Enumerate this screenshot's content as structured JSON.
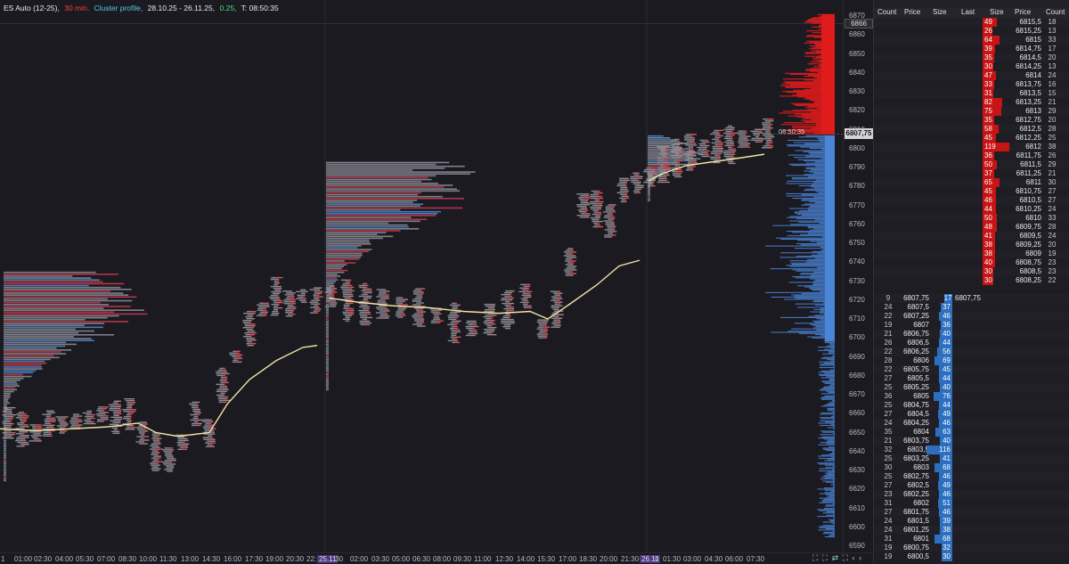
{
  "header": {
    "instrument": "ES Auto (12-25),",
    "timeframe": "30 min,",
    "chart_type": "Cluster profile,",
    "range": "28.10.25 - 26.11.25,",
    "tick": "0.25,",
    "timer": "T: 08:50:35"
  },
  "colors": {
    "background": "#1b1a21",
    "ask_red": "#e01b1b",
    "bid_blue": "#4a86d8",
    "vwap_yellow": "#f0e3a0",
    "header_red": "#ff3b3b",
    "header_cyan": "#57c9e6",
    "header_green": "#4ddb7a"
  },
  "price_axis": {
    "ticks": [
      "6870",
      "6860",
      "6850",
      "6840",
      "6830",
      "6820",
      "6810",
      "6800",
      "6790",
      "6780",
      "6770",
      "6760",
      "6750",
      "6740",
      "6730",
      "6720",
      "6710",
      "6700",
      "6690",
      "6680",
      "6670",
      "6660",
      "6650",
      "6640",
      "6630",
      "6620",
      "6610",
      "6600",
      "6590"
    ],
    "last_price": "6807,75",
    "cursor_price": "6866",
    "countdown": "08:50:35"
  },
  "time_axis": {
    "ticks": [
      "01:00",
      "02:30",
      "04:00",
      "05:30",
      "07:00",
      "08:30",
      "10:00",
      "11:30",
      "13:00",
      "14:30",
      "16:00",
      "17:30",
      "19:00",
      "20:30",
      "22:",
      "25.11",
      ":30",
      "02:00",
      "03:30",
      "05:00",
      "06:30",
      "08:00",
      "09:30",
      "11:00",
      "12:30",
      "14:00",
      "15:30",
      "17:00",
      "18:30",
      "20:00",
      "21:30",
      "26.11",
      "0",
      "01:30",
      "03:00",
      "04:30",
      "06:00",
      "07:30"
    ],
    "first": "1",
    "tools": "⛶ ⛶ ⇄ ⛶ ‹ ›"
  },
  "dom": {
    "headers": [
      "Count",
      "Price",
      "Size",
      "Last",
      "Size",
      "Price",
      "Count"
    ],
    "last_price": "6807,75",
    "asks": [
      {
        "size": "49",
        "price": "6815,5",
        "count": "18"
      },
      {
        "size": "26",
        "price": "6815,25",
        "count": "13"
      },
      {
        "size": "64",
        "price": "6815",
        "count": "33"
      },
      {
        "size": "39",
        "price": "6814,75",
        "count": "17"
      },
      {
        "size": "35",
        "price": "6814,5",
        "count": "20"
      },
      {
        "size": "30",
        "price": "6814,25",
        "count": "13"
      },
      {
        "size": "47",
        "price": "6814",
        "count": "24"
      },
      {
        "size": "33",
        "price": "6813,75",
        "count": "16"
      },
      {
        "size": "31",
        "price": "6813,5",
        "count": "15"
      },
      {
        "size": "82",
        "price": "6813,25",
        "count": "21"
      },
      {
        "size": "75",
        "price": "6813",
        "count": "29"
      },
      {
        "size": "35",
        "price": "6812,75",
        "count": "20"
      },
      {
        "size": "58",
        "price": "6812,5",
        "count": "28"
      },
      {
        "size": "45",
        "price": "6812,25",
        "count": "25"
      },
      {
        "size": "119",
        "price": "6812",
        "count": "38"
      },
      {
        "size": "36",
        "price": "6811,75",
        "count": "26"
      },
      {
        "size": "50",
        "price": "6811,5",
        "count": "29"
      },
      {
        "size": "37",
        "price": "6811,25",
        "count": "21"
      },
      {
        "size": "65",
        "price": "6811",
        "count": "30"
      },
      {
        "size": "45",
        "price": "6810,75",
        "count": "27"
      },
      {
        "size": "46",
        "price": "6810,5",
        "count": "27"
      },
      {
        "size": "44",
        "price": "6810,25",
        "count": "24"
      },
      {
        "size": "50",
        "price": "6810",
        "count": "33"
      },
      {
        "size": "48",
        "price": "6809,75",
        "count": "28"
      },
      {
        "size": "41",
        "price": "6809,5",
        "count": "24"
      },
      {
        "size": "38",
        "price": "6809,25",
        "count": "20"
      },
      {
        "size": "38",
        "price": "6809",
        "count": "19"
      },
      {
        "size": "40",
        "price": "6808,75",
        "count": "23"
      },
      {
        "size": "30",
        "price": "6808,5",
        "count": "23"
      },
      {
        "size": "30",
        "price": "6808,25",
        "count": "22"
      }
    ],
    "bids": [
      {
        "count": "9",
        "price": "6807,75",
        "size": "17"
      },
      {
        "count": "24",
        "price": "6807,5",
        "size": "37"
      },
      {
        "count": "22",
        "price": "6807,25",
        "size": "46"
      },
      {
        "count": "19",
        "price": "6807",
        "size": "36"
      },
      {
        "count": "21",
        "price": "6806,75",
        "size": "40"
      },
      {
        "count": "26",
        "price": "6806,5",
        "size": "44"
      },
      {
        "count": "22",
        "price": "6806,25",
        "size": "56"
      },
      {
        "count": "28",
        "price": "6806",
        "size": "69"
      },
      {
        "count": "22",
        "price": "6805,75",
        "size": "45"
      },
      {
        "count": "27",
        "price": "6805,5",
        "size": "44"
      },
      {
        "count": "25",
        "price": "6805,25",
        "size": "40"
      },
      {
        "count": "36",
        "price": "6805",
        "size": "76"
      },
      {
        "count": "25",
        "price": "6804,75",
        "size": "44"
      },
      {
        "count": "27",
        "price": "6804,5",
        "size": "49"
      },
      {
        "count": "24",
        "price": "6804,25",
        "size": "46"
      },
      {
        "count": "35",
        "price": "6804",
        "size": "63"
      },
      {
        "count": "21",
        "price": "6803,75",
        "size": "40"
      },
      {
        "count": "32",
        "price": "6803,5",
        "size": "116"
      },
      {
        "count": "25",
        "price": "6803,25",
        "size": "41"
      },
      {
        "count": "30",
        "price": "6803",
        "size": "68"
      },
      {
        "count": "25",
        "price": "6802,75",
        "size": "46"
      },
      {
        "count": "27",
        "price": "6802,5",
        "size": "49"
      },
      {
        "count": "23",
        "price": "6802,25",
        "size": "46"
      },
      {
        "count": "31",
        "price": "6802",
        "size": "51"
      },
      {
        "count": "27",
        "price": "6801,75",
        "size": "46"
      },
      {
        "count": "24",
        "price": "6801,5",
        "size": "39"
      },
      {
        "count": "24",
        "price": "6801,25",
        "size": "38"
      },
      {
        "count": "31",
        "price": "6801",
        "size": "68"
      },
      {
        "count": "19",
        "price": "6800,75",
        "size": "32"
      },
      {
        "count": "19",
        "price": "6800,5",
        "size": "30"
      }
    ]
  }
}
